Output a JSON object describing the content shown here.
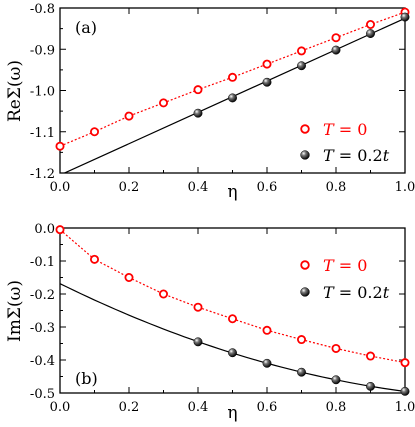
{
  "chart_data": [
    {
      "type": "scatter",
      "panel_label": "(a)",
      "xlabel": "η",
      "ylabel": "ReΣ(ω)",
      "xlim": [
        0.0,
        1.0
      ],
      "ylim": [
        -1.2,
        -0.8
      ],
      "xticks": [
        "0.0",
        "0.2",
        "0.4",
        "0.6",
        "0.8",
        "1.0"
      ],
      "yticks": [
        "-0.8",
        "-0.9",
        "-1.0",
        "-1.1",
        "-1.2"
      ],
      "legend_position": "center-right",
      "series": [
        {
          "name": "T = 0",
          "name_italic": "T",
          "name_rest": " = 0",
          "marker": "open-circle",
          "color": "#ff0000",
          "fit_line": "dotted",
          "x": [
            0.0,
            0.1,
            0.2,
            0.3,
            0.4,
            0.5,
            0.6,
            0.7,
            0.8,
            0.9,
            1.0
          ],
          "values": [
            -1.135,
            -1.1,
            -1.062,
            -1.03,
            -0.998,
            -0.968,
            -0.936,
            -0.904,
            -0.872,
            -0.84,
            -0.81
          ]
        },
        {
          "name": "T = 0.2t",
          "name_italic": "T",
          "name_rest": " = 0.2",
          "name_suffix_italic": "t",
          "marker": "filled-sphere",
          "color": "#000000",
          "fit_line": "solid",
          "x": [
            0.4,
            0.5,
            0.6,
            0.7,
            0.8,
            0.9,
            1.0
          ],
          "values": [
            -1.055,
            -1.018,
            -0.98,
            -0.94,
            -0.902,
            -0.862,
            -0.822
          ],
          "fit_x": [
            0.0,
            1.0
          ],
          "fit_values": [
            -1.205,
            -0.825
          ]
        }
      ]
    },
    {
      "type": "scatter",
      "panel_label": "(b)",
      "xlabel": "η",
      "ylabel": "ImΣ(ω)",
      "xlim": [
        0.0,
        1.0
      ],
      "ylim": [
        -0.5,
        0.0
      ],
      "xticks": [
        "0.0",
        "0.2",
        "0.4",
        "0.6",
        "0.8",
        "1.0"
      ],
      "yticks": [
        "0.0",
        "-0.1",
        "-0.2",
        "-0.3",
        "-0.4",
        "-0.5"
      ],
      "legend_position": "top-right",
      "series": [
        {
          "name": "T = 0",
          "name_italic": "T",
          "name_rest": " = 0",
          "marker": "open-circle",
          "color": "#ff0000",
          "fit_line": "dotted",
          "x": [
            0.0,
            0.1,
            0.2,
            0.3,
            0.4,
            0.5,
            0.6,
            0.7,
            0.8,
            0.9,
            1.0
          ],
          "values": [
            -0.005,
            -0.095,
            -0.15,
            -0.2,
            -0.24,
            -0.275,
            -0.31,
            -0.338,
            -0.365,
            -0.388,
            -0.408
          ]
        },
        {
          "name": "T = 0.2t",
          "name_italic": "T",
          "name_rest": " = 0.2",
          "name_suffix_italic": "t",
          "marker": "filled-sphere",
          "color": "#000000",
          "fit_line": "solid",
          "x": [
            0.4,
            0.5,
            0.6,
            0.7,
            0.8,
            0.9,
            1.0
          ],
          "values": [
            -0.345,
            -0.378,
            -0.41,
            -0.437,
            -0.46,
            -0.48,
            -0.495
          ]
        }
      ]
    }
  ]
}
